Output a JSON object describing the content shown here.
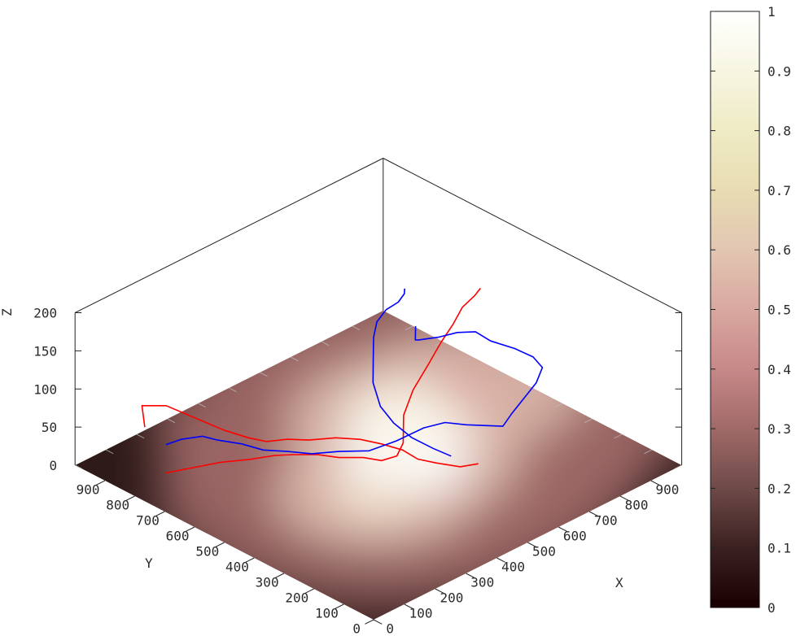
{
  "chart_data": {
    "type": "surface3d",
    "title": "",
    "xlabel": "X",
    "ylabel": "Y",
    "zlabel": "Z",
    "xlim": [
      0,
      1000
    ],
    "ylim": [
      0,
      1000
    ],
    "zlim": [
      0,
      200
    ],
    "x_ticks": [
      0,
      100,
      200,
      300,
      400,
      500,
      600,
      700,
      800,
      900
    ],
    "y_ticks": [
      0,
      100,
      200,
      300,
      400,
      500,
      600,
      700,
      800,
      900
    ],
    "z_ticks": [
      0,
      50,
      100,
      150,
      200
    ],
    "colorbar": {
      "ticks": [
        "0",
        "0.1",
        "0.2",
        "0.3",
        "0.4",
        "0.5",
        "0.6",
        "0.7",
        "0.8",
        "0.9",
        "1"
      ],
      "range": [
        0,
        1
      ],
      "colors": [
        "#1a0000",
        "#3a2020",
        "#6e4a48",
        "#a06a68",
        "#c78888",
        "#d9a8a0",
        "#e2c6b2",
        "#e8dcb2",
        "#efebc4",
        "#f7f6e2",
        "#ffffff"
      ]
    },
    "surface": {
      "base_color": "#2e1a19",
      "peaks": [
        {
          "x": 560,
          "y": 470,
          "value": 1.0,
          "spread": 190
        },
        {
          "x": 700,
          "y": 610,
          "value": 0.95,
          "spread": 200
        },
        {
          "x": 390,
          "y": 400,
          "value": 0.75,
          "spread": 170
        },
        {
          "x": 900,
          "y": 600,
          "value": 0.6,
          "spread": 190
        }
      ]
    },
    "series": [
      {
        "color": "#ff0000",
        "points": [
          [
            110,
            880,
            52
          ],
          [
            130,
            910,
            70
          ],
          [
            170,
            870,
            70
          ],
          [
            215,
            820,
            55
          ],
          [
            260,
            770,
            40
          ],
          [
            300,
            730,
            30
          ],
          [
            330,
            700,
            25
          ],
          [
            360,
            660,
            30
          ],
          [
            380,
            610,
            35
          ],
          [
            420,
            560,
            40
          ],
          [
            460,
            520,
            38
          ],
          [
            500,
            490,
            30
          ],
          [
            540,
            460,
            20
          ],
          [
            560,
            430,
            10
          ],
          [
            590,
            400,
            5
          ],
          [
            630,
            360,
            0
          ],
          [
            650,
            320,
            8
          ]
        ]
      },
      {
        "color": "#ff0000",
        "points": [
          [
            100,
            800,
            10
          ],
          [
            150,
            760,
            15
          ],
          [
            200,
            720,
            20
          ],
          [
            260,
            680,
            20
          ],
          [
            300,
            640,
            25
          ],
          [
            340,
            620,
            22
          ],
          [
            390,
            590,
            18
          ],
          [
            430,
            560,
            12
          ],
          [
            480,
            530,
            8
          ],
          [
            520,
            510,
            0
          ],
          [
            560,
            500,
            0
          ],
          [
            600,
            520,
            5
          ],
          [
            640,
            560,
            25
          ],
          [
            700,
            590,
            40
          ],
          [
            760,
            600,
            60
          ],
          [
            800,
            600,
            80
          ],
          [
            830,
            590,
            100
          ],
          [
            850,
            580,
            120
          ],
          [
            870,
            560,
            135
          ],
          [
            880,
            550,
            145
          ]
        ]
      },
      {
        "color": "#0000ff",
        "points": [
          [
            130,
            830,
            35
          ],
          [
            160,
            810,
            40
          ],
          [
            200,
            780,
            42
          ],
          [
            230,
            760,
            35
          ],
          [
            270,
            720,
            30
          ],
          [
            310,
            690,
            20
          ],
          [
            350,
            650,
            18
          ],
          [
            390,
            610,
            15
          ],
          [
            430,
            560,
            20
          ],
          [
            470,
            500,
            25
          ],
          [
            510,
            450,
            40
          ],
          [
            560,
            410,
            55
          ],
          [
            600,
            380,
            60
          ],
          [
            640,
            350,
            55
          ],
          [
            680,
            330,
            50
          ],
          [
            720,
            310,
            45
          ],
          [
            740,
            300,
            60
          ],
          [
            760,
            280,
            80
          ],
          [
            780,
            260,
            100
          ],
          [
            790,
            250,
            120
          ],
          [
            760,
            250,
            140
          ],
          [
            720,
            270,
            155
          ],
          [
            680,
            310,
            165
          ],
          [
            660,
            340,
            175
          ],
          [
            640,
            380,
            170
          ],
          [
            620,
            420,
            160
          ],
          [
            600,
            470,
            150
          ],
          [
            620,
            500,
            140
          ],
          [
            640,
            520,
            150
          ]
        ]
      },
      {
        "color": "#0000ff",
        "points": [
          [
            620,
            380,
            12
          ],
          [
            600,
            420,
            18
          ],
          [
            570,
            460,
            30
          ],
          [
            550,
            500,
            45
          ],
          [
            545,
            540,
            60
          ],
          [
            560,
            580,
            80
          ],
          [
            590,
            610,
            100
          ],
          [
            620,
            640,
            115
          ],
          [
            650,
            660,
            125
          ],
          [
            680,
            660,
            135
          ],
          [
            700,
            640,
            145
          ],
          [
            720,
            640,
            152
          ],
          [
            740,
            660,
            150
          ],
          [
            760,
            680,
            140
          ]
        ]
      }
    ]
  }
}
